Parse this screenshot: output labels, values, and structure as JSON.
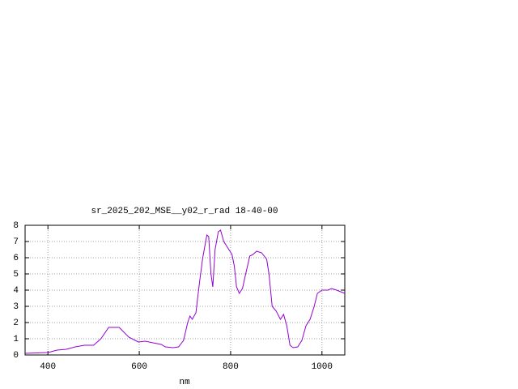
{
  "chart_data": {
    "type": "line",
    "title": "sr_2025_202_MSE__y02_r_rad 18-40-00",
    "x_label": "nm",
    "x": [
      350,
      400,
      420,
      440,
      460,
      480,
      500,
      516,
      533,
      556,
      577,
      591,
      598,
      613,
      630,
      648,
      657,
      674,
      686,
      697,
      706,
      711,
      716,
      724,
      732,
      739,
      748,
      752,
      757,
      761,
      766,
      773,
      778,
      785,
      794,
      803,
      808,
      813,
      819,
      826,
      833,
      842,
      849,
      857,
      868,
      879,
      884,
      891,
      900,
      909,
      916,
      923,
      930,
      937,
      947,
      956,
      965,
      974,
      983,
      990,
      1000,
      1013,
      1021,
      1032,
      1050
    ],
    "series": [
      {
        "name": "sr_2025_202_MSE__y02_r_rad 18-40-00",
        "color": "#9400d3",
        "values": [
          0.1,
          0.15,
          0.3,
          0.35,
          0.5,
          0.6,
          0.6,
          1.0,
          1.7,
          1.7,
          1.1,
          0.9,
          0.8,
          0.85,
          0.75,
          0.65,
          0.5,
          0.45,
          0.5,
          0.9,
          2.0,
          2.4,
          2.2,
          2.6,
          4.5,
          6.0,
          7.4,
          7.3,
          5.0,
          4.2,
          6.5,
          7.6,
          7.7,
          7.0,
          6.6,
          6.2,
          5.5,
          4.2,
          3.8,
          4.1,
          5.0,
          6.1,
          6.2,
          6.4,
          6.3,
          5.9,
          5.0,
          3.0,
          2.7,
          2.2,
          2.5,
          1.8,
          0.6,
          0.45,
          0.5,
          0.9,
          1.8,
          2.2,
          3.0,
          3.8,
          4.0,
          4.0,
          4.1,
          4.0,
          3.8
        ]
      }
    ],
    "xlim": [
      350,
      1050
    ],
    "ylim": [
      0,
      8
    ],
    "xticks": [
      400,
      600,
      800,
      1000
    ],
    "yticks": [
      0,
      1,
      2,
      3,
      4,
      5,
      6,
      7,
      8
    ],
    "grid": true
  }
}
